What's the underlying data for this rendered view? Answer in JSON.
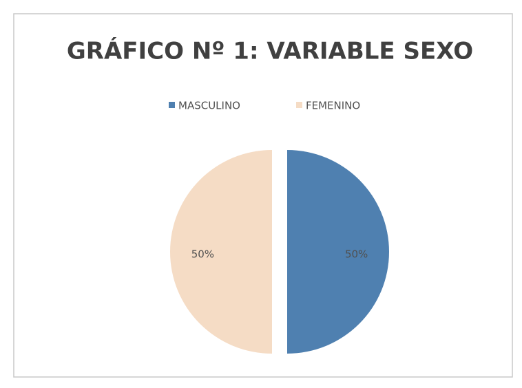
{
  "chart_data": {
    "type": "pie",
    "title": "GRÁFICO Nº 1: VARIABLE SEXO",
    "categories": [
      "MASCULINO",
      "FEMENINO"
    ],
    "values": [
      50,
      50
    ],
    "value_labels": [
      "50%",
      "50%"
    ],
    "colors": [
      "#4f80b0",
      "#f5dcc5"
    ],
    "legend": "top"
  }
}
